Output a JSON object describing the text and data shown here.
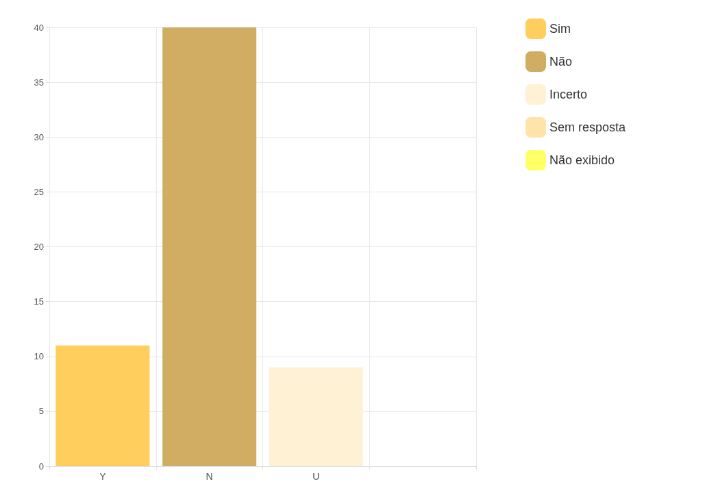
{
  "chart_data": {
    "type": "bar",
    "categories": [
      "Y",
      "N",
      "U",
      null
    ],
    "stacked": true,
    "grid": true,
    "legend": "top right",
    "ylim": [
      0,
      40
    ],
    "yticks": [
      0,
      5,
      10,
      15,
      20,
      25,
      30,
      35,
      40
    ],
    "series": [
      {
        "name": "Sim",
        "color": "#ffce5c",
        "values": [
          11,
          null,
          null,
          null
        ]
      },
      {
        "name": "Não",
        "color": "#d0ad62",
        "values": [
          null,
          40,
          null,
          null
        ]
      },
      {
        "name": "Incerto",
        "color": "#fff1d4",
        "values": [
          null,
          null,
          9,
          null
        ]
      },
      {
        "name": "Sem resposta",
        "color": "#ffe3a8",
        "values": [
          null,
          null,
          null,
          0
        ]
      },
      {
        "name": "Não exibido",
        "color": "#ffff66",
        "values": [
          null,
          null,
          null,
          null
        ]
      }
    ]
  }
}
